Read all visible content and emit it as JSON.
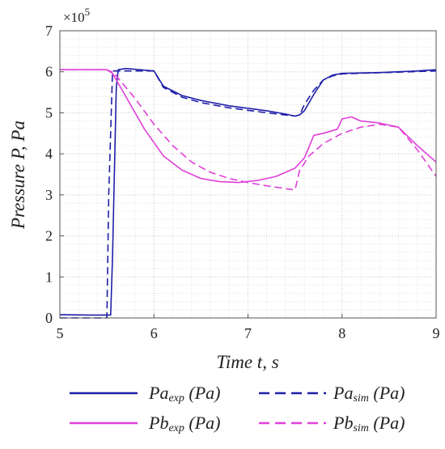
{
  "chart_data": {
    "type": "line",
    "title": "",
    "xlabel": "Time t, s",
    "ylabel": "Pressure P, Pa",
    "y_multiplier": "×10",
    "y_multiplier_exp": "5",
    "xlim": [
      5,
      9
    ],
    "ylim": [
      0,
      7
    ],
    "xticks": [
      "5",
      "6",
      "7",
      "8",
      "9"
    ],
    "yticks": [
      "0",
      "1",
      "2",
      "3",
      "4",
      "5",
      "6",
      "7"
    ],
    "grid": true,
    "legend_position": "bottom",
    "series": [
      {
        "name": "Pa",
        "subscript": "exp",
        "unit": "(Pa)",
        "color": "#1f1fa8",
        "style": "solid",
        "x": [
          5.0,
          5.3,
          5.54,
          5.56,
          5.6,
          5.62,
          5.7,
          5.85,
          6.0,
          6.1,
          6.3,
          6.5,
          6.8,
          7.2,
          7.4,
          7.5,
          7.55,
          7.6,
          7.7,
          7.8,
          7.9,
          8.0,
          8.2,
          8.4,
          8.6,
          8.8,
          9.0
        ],
        "y": [
          0.08,
          0.07,
          0.07,
          1.5,
          5.6,
          6.05,
          6.08,
          6.05,
          6.02,
          5.65,
          5.42,
          5.3,
          5.17,
          5.05,
          4.97,
          4.92,
          4.95,
          5.05,
          5.45,
          5.8,
          5.92,
          5.96,
          5.97,
          5.98,
          6.0,
          6.02,
          6.05
        ]
      },
      {
        "name": "Pa",
        "subscript": "sim",
        "unit": "(Pa)",
        "color": "#1f1fa8",
        "style": "dashed",
        "x": [
          5.0,
          5.5,
          5.52,
          5.56,
          5.7,
          6.0,
          6.1,
          6.3,
          6.5,
          6.8,
          7.2,
          7.5,
          7.55,
          7.6,
          7.7,
          7.8,
          7.9,
          8.0,
          8.3,
          8.6,
          9.0
        ],
        "y": [
          0.0,
          0.0,
          3.0,
          6.02,
          6.02,
          6.02,
          5.62,
          5.38,
          5.25,
          5.12,
          5.0,
          4.92,
          4.95,
          5.2,
          5.55,
          5.8,
          5.9,
          5.95,
          5.97,
          5.99,
          6.02
        ]
      },
      {
        "name": "Pb",
        "subscript": "exp",
        "unit": "(Pa)",
        "color": "#e040d8",
        "style": "solid",
        "x": [
          5.0,
          5.5,
          5.55,
          5.7,
          5.9,
          6.1,
          6.3,
          6.5,
          6.7,
          6.9,
          7.1,
          7.3,
          7.5,
          7.6,
          7.7,
          7.8,
          7.95,
          8.0,
          8.1,
          8.2,
          8.4,
          8.6,
          8.8,
          9.0
        ],
        "y": [
          6.05,
          6.05,
          6.0,
          5.4,
          4.6,
          3.95,
          3.6,
          3.4,
          3.32,
          3.3,
          3.35,
          3.45,
          3.65,
          3.9,
          4.45,
          4.5,
          4.6,
          4.85,
          4.9,
          4.8,
          4.75,
          4.65,
          4.2,
          3.8
        ]
      },
      {
        "name": "Pb",
        "subscript": "sim",
        "unit": "(Pa)",
        "color": "#e040d8",
        "style": "dashed",
        "x": [
          5.0,
          5.5,
          5.6,
          5.8,
          6.0,
          6.2,
          6.4,
          6.6,
          6.8,
          7.0,
          7.2,
          7.5,
          7.55,
          7.65,
          7.8,
          8.0,
          8.2,
          8.4,
          8.6,
          8.8,
          9.0
        ],
        "y": [
          6.05,
          6.05,
          5.9,
          5.35,
          4.72,
          4.2,
          3.8,
          3.55,
          3.4,
          3.3,
          3.22,
          3.12,
          3.6,
          3.95,
          4.25,
          4.5,
          4.65,
          4.72,
          4.65,
          4.1,
          3.45
        ]
      }
    ]
  }
}
